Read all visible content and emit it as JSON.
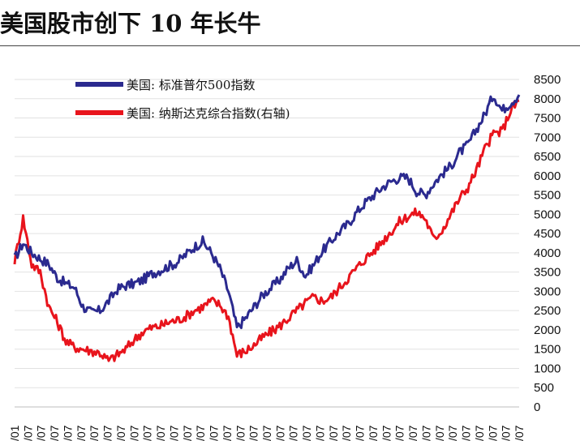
{
  "title": "美国股市创下 10 年长牛",
  "chart_data": {
    "type": "line",
    "ylim": [
      0,
      8500
    ],
    "y_ticks": [
      8500,
      8000,
      7500,
      7000,
      6500,
      6000,
      5500,
      5000,
      4500,
      4000,
      3500,
      3000,
      2500,
      2000,
      1500,
      1000,
      500,
      0
    ],
    "x_tick_labels": [
      "/01",
      "/07",
      "/07",
      "/07",
      "/07",
      "/07",
      "/07",
      "/07",
      "/07",
      "/07",
      "/07",
      "/07",
      "/07",
      "/07",
      "/07",
      "/07",
      "/07",
      "/07",
      "/07",
      "/07",
      "/07",
      "/07",
      "/07",
      "/07",
      "/07",
      "/07",
      "/07",
      "/07",
      "/07",
      "/07",
      "/07",
      "/07",
      "/07",
      "/07",
      "/07",
      "/07",
      "/07",
      "/07",
      "/07"
    ],
    "grid": true,
    "legend_position": "top-left",
    "series": [
      {
        "name": "美国: 标准普尔500指数",
        "color": "#2b2a8f",
        "values": [
          3850,
          4250,
          4000,
          3850,
          3700,
          3350,
          3200,
          3100,
          2600,
          2450,
          2500,
          2750,
          3050,
          3150,
          3200,
          3300,
          3450,
          3550,
          3650,
          3750,
          3950,
          4150,
          4300,
          4000,
          3600,
          3000,
          2050,
          2300,
          2600,
          2900,
          3100,
          3300,
          3600,
          3800,
          3400,
          3700,
          4050,
          4300,
          4550,
          4750,
          5050,
          5300,
          5500,
          5700,
          5850,
          5950,
          5950,
          5600,
          5500,
          5800,
          6050,
          6250,
          6600,
          6800,
          7200,
          7600,
          8100,
          7700,
          7900,
          8100
        ]
      },
      {
        "name": "美国: 纳斯达克综合指数(右轴)",
        "color": "#e8141c",
        "values": [
          3800,
          4900,
          3700,
          3500,
          2600,
          2200,
          1700,
          1550,
          1500,
          1450,
          1400,
          1200,
          1350,
          1500,
          1750,
          1950,
          2050,
          2100,
          2200,
          2250,
          2350,
          2500,
          2600,
          2750,
          2650,
          2350,
          1350,
          1450,
          1600,
          1800,
          1950,
          2100,
          2300,
          2500,
          2700,
          2850,
          2750,
          2850,
          3100,
          3350,
          3600,
          3850,
          4050,
          4300,
          4550,
          4800,
          4950,
          5050,
          4900,
          4350,
          4600,
          5000,
          5400,
          5700,
          6150,
          6700,
          7100,
          7150,
          7700,
          7950
        ]
      }
    ]
  }
}
